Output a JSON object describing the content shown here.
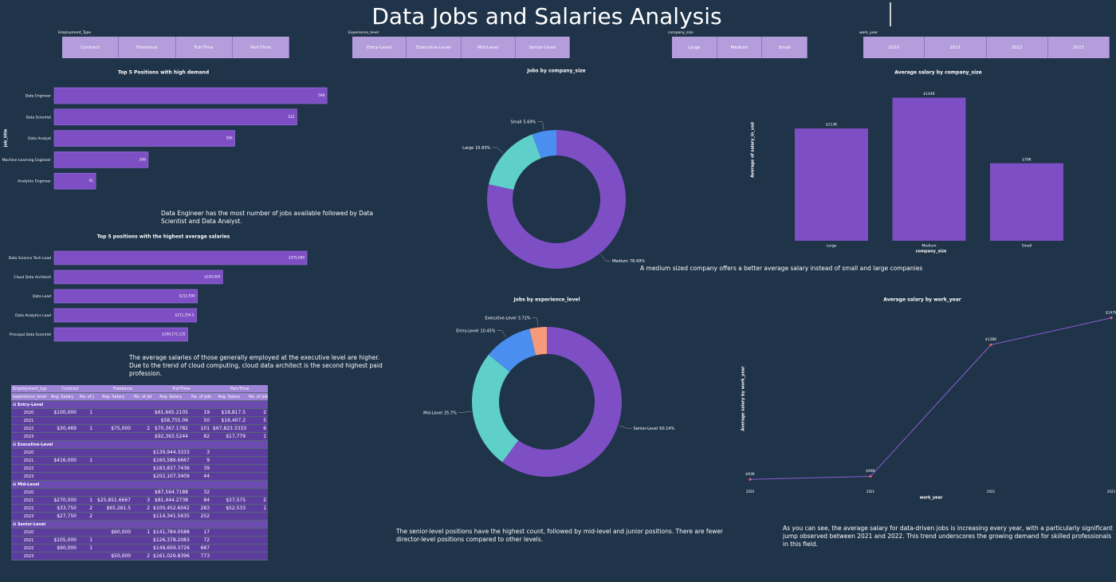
{
  "header": {
    "title": "Data Jobs and Salaries Analysis"
  },
  "slicers": [
    {
      "label": "Employment_Type",
      "options": [
        "Contract",
        "Freelance",
        "Full-Time",
        "Part-Time"
      ]
    },
    {
      "label": "Experience_level",
      "options": [
        "Entry-Level",
        "Executive-Level",
        "Mid-Level",
        "Senior-Level"
      ]
    },
    {
      "label": "company_size",
      "options": [
        "Large",
        "Medium",
        "Small"
      ]
    },
    {
      "label": "work_year",
      "options": [
        "2020",
        "2021",
        "2022",
        "2023"
      ]
    }
  ],
  "chart_data": [
    {
      "type": "hbar",
      "title": "Top 5 Positions with high demand",
      "ylabel": "job_title",
      "categories": [
        "Data Engineer",
        "Data Scientist",
        "Data Analyst",
        "Machine Learning Engineer",
        "Analytics Engineer"
      ],
      "values": [
        598,
        532,
        396,
        206,
        91
      ],
      "xlim": [
        0,
        650
      ],
      "color": "#7e4fc4",
      "annotation": "Data Engineer has the most number of jobs available followed by Data Scientist and Data Analyst."
    },
    {
      "type": "hbar",
      "title": "Top 5 positions with the highest average salaries",
      "categories": [
        "Data Science Tech Lead",
        "Cloud Data Architect",
        "Data Lead",
        "Data Analytics Lead",
        "Principal Data Scientist"
      ],
      "values": [
        375000,
        250000,
        212500,
        211254.5,
        198171.125
      ],
      "value_labels": [
        "$375,000",
        "$250,000",
        "$212,500",
        "$211,254.5",
        "$198,171.125"
      ],
      "xlim": [
        0,
        440000
      ],
      "color": "#7e4fc4",
      "annotation": "The average salaries of those generally employed at the executive level are higher. Due to the trend of cloud computing, cloud data architect is the second highest paid profession."
    },
    {
      "type": "donut",
      "title": "Jobs by company_size",
      "categories": [
        "Medium",
        "Large",
        "Small"
      ],
      "values": [
        78.49,
        15.83,
        5.69
      ],
      "value_labels": [
        "78.49%",
        "15.83%",
        "5.69%"
      ],
      "colors": [
        "#7e4fc4",
        "#5ecfc9",
        "#4a8ef0"
      ]
    },
    {
      "type": "bar",
      "title": "Average salary by company_size",
      "xlabel": "company_size",
      "ylabel": "Average of salary_in_usd",
      "categories": [
        "Large",
        "Medium",
        "Small"
      ],
      "values": [
        113000,
        144000,
        78000
      ],
      "value_labels": [
        "$113K",
        "$144K",
        "$78K"
      ],
      "ylim": [
        0,
        150000
      ],
      "color": "#7e4fc4",
      "annotation": "A medium sized company offers a better average salary instead of small and large companies"
    },
    {
      "type": "donut",
      "title": "Jobs by experience_level",
      "categories": [
        "Senior-Level",
        "Mid-Level",
        "Entry-Level",
        "Executive-Level"
      ],
      "values": [
        60.14,
        25.7,
        10.45,
        3.72
      ],
      "value_labels": [
        "60.14%",
        "25.7%",
        "10.45%",
        "3.72%"
      ],
      "colors": [
        "#7e4fc4",
        "#5ecfc9",
        "#4a8ef0",
        "#f79a7b"
      ],
      "annotation": "The senior-level positions have the highest count, followed by mid-level and junior positions. There are fewer director-level positions compared to other levels."
    },
    {
      "type": "line",
      "title": "Average salary by work_year",
      "xlabel": "work_year",
      "ylabel": "Average salary by work_year",
      "x": [
        2020,
        2021,
        2022,
        2023
      ],
      "values": [
        93000,
        94000,
        138000,
        147000
      ],
      "value_labels": [
        "$93K",
        "$94K",
        "$138K",
        "$147K"
      ],
      "xlim": [
        2020,
        2023
      ],
      "xticks": [
        2020,
        2021,
        2022,
        2023
      ],
      "ylim": [
        92000,
        148000
      ],
      "color": "#8a5fd1",
      "marker_color": "#e0607a",
      "annotation": "As you can see, the average salary for data-driven jobs is increasing every year, with a particularly significant jump observed between 2021 and 2022. This trend underscores the growing demand for skilled professionals in this field."
    }
  ],
  "table": {
    "column_header": "Employment_type",
    "row_header": "experience_level",
    "columns": [
      "Contract",
      "Freelance",
      "Full-Time",
      "Part-Time"
    ],
    "measures": [
      "Avg. Salary",
      "No. of Jobs"
    ],
    "groups": [
      {
        "name": "Entry-Level",
        "rows": [
          [
            2020,
            "$100,000",
            1,
            null,
            null,
            "$61,665.2105",
            19,
            "$18,817.5",
            2
          ],
          [
            2021,
            null,
            null,
            null,
            null,
            "$58,755.06",
            50,
            "$16,407.2",
            5
          ],
          [
            2022,
            "$30,469",
            1,
            "$75,000",
            2,
            "$70,367.1782",
            101,
            "$67,823.3333",
            6
          ],
          [
            2023,
            null,
            null,
            null,
            null,
            "$92,363.5244",
            82,
            "$17,779",
            1
          ]
        ]
      },
      {
        "name": "Executive-Level",
        "rows": [
          [
            2020,
            null,
            null,
            null,
            null,
            "$139,944.3333",
            3,
            null,
            null
          ],
          [
            2021,
            "$416,000",
            1,
            null,
            null,
            "$160,586.6667",
            9,
            null,
            null
          ],
          [
            2022,
            null,
            null,
            null,
            null,
            "$183,837.7436",
            39,
            null,
            null
          ],
          [
            2023,
            null,
            null,
            null,
            null,
            "$202,107.3409",
            44,
            null,
            null
          ]
        ]
      },
      {
        "name": "Mid-Level",
        "rows": [
          [
            2020,
            null,
            null,
            null,
            null,
            "$87,564.7188",
            32,
            null,
            null
          ],
          [
            2021,
            "$270,000",
            1,
            "$25,851.6667",
            3,
            "$81,444.2738",
            84,
            "$37,575",
            2
          ],
          [
            2022,
            "$33,750",
            2,
            "$65,261.5",
            2,
            "$100,452.6042",
            283,
            "$52,533",
            1
          ],
          [
            2023,
            "$27,750",
            2,
            null,
            null,
            "$114,341.5635",
            252,
            null,
            null
          ]
        ]
      },
      {
        "name": "Senior-Level",
        "rows": [
          [
            2020,
            null,
            null,
            "$60,000",
            1,
            "$141,784.0588",
            17,
            null,
            null
          ],
          [
            2021,
            "$105,000",
            1,
            null,
            null,
            "$126,378.2083",
            72,
            null,
            null
          ],
          [
            2022,
            "$90,000",
            1,
            null,
            null,
            "$149,659.3726",
            687,
            null,
            null
          ],
          [
            2023,
            null,
            null,
            "$50,000",
            2,
            "$161,029.8396",
            773,
            null,
            null
          ]
        ]
      }
    ]
  }
}
